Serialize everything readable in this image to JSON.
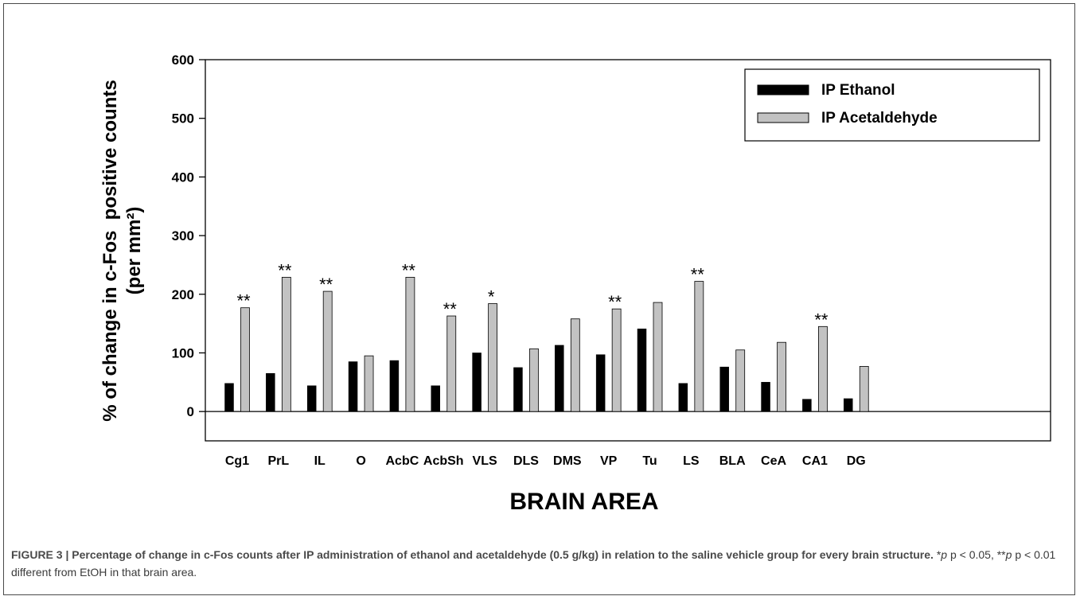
{
  "chart_data": {
    "type": "bar",
    "title": "",
    "xlabel": "BRAIN AREA",
    "ylabel_line1": "% of change in c-Fos  positive counts",
    "ylabel_line2": "(per mm²)",
    "ylim": [
      -50,
      600
    ],
    "yticks": [
      0,
      100,
      200,
      300,
      400,
      500,
      600
    ],
    "grid": false,
    "legend_position": "top-right",
    "categories": [
      "Cg1",
      "PrL",
      "IL",
      "O",
      "AcbC",
      "AcbSh",
      "VLS",
      "DLS",
      "DMS",
      "VP",
      "Tu",
      "LS",
      "BLA",
      "CeA",
      "CA1",
      "DG"
    ],
    "series": [
      {
        "name": "IP Ethanol",
        "color": "#000000",
        "values": [
          48,
          65,
          44,
          85,
          87,
          44,
          100,
          75,
          113,
          97,
          141,
          48,
          76,
          50,
          21,
          22
        ]
      },
      {
        "name": "IP Acetaldehyde",
        "color": "#c2c2c2",
        "values": [
          177,
          229,
          205,
          95,
          229,
          163,
          184,
          107,
          158,
          175,
          186,
          222,
          105,
          118,
          145,
          77
        ]
      }
    ],
    "annotations": [
      "**",
      "**",
      "**",
      "",
      "**",
      "**",
      "*",
      "",
      "",
      "**",
      "",
      "**",
      "",
      "",
      "**",
      ""
    ]
  },
  "caption": {
    "lead": "FIGURE 3 | Percentage of change in c-Fos counts after IP administration of ethanol and acetaldehyde (0.5 g/kg) in relation to the saline vehicle group for every brain structure.",
    "sig_one_star": "*",
    "sig_one_star_text": "p < 0.05, ",
    "sig_two_star": "**",
    "sig_two_star_text": "p < 0.01 different from EtOH in that brain area."
  }
}
